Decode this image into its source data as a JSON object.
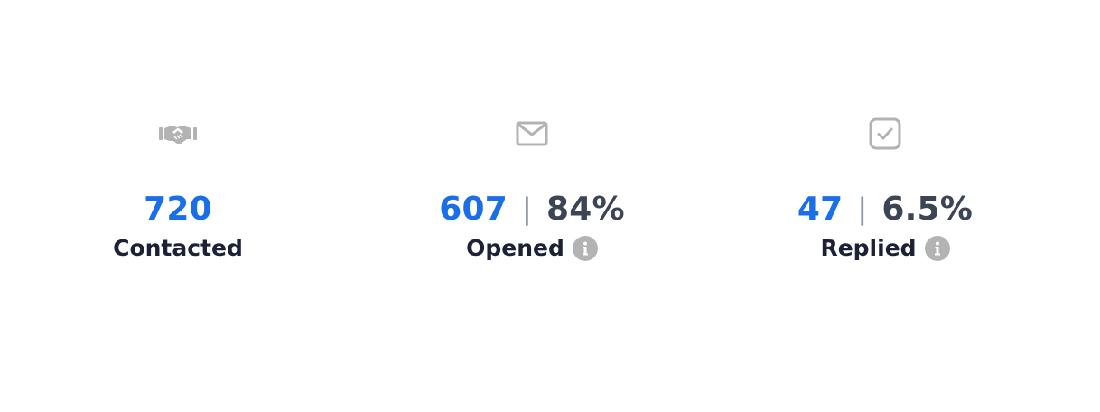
{
  "stats": [
    {
      "icon": "handshake-icon",
      "count": "720",
      "percent": "",
      "label": "Contacted",
      "has_info": false
    },
    {
      "icon": "envelope-icon",
      "count": "607",
      "separator": "|",
      "percent": "84%",
      "label": "Opened",
      "has_info": true
    },
    {
      "icon": "checkbox-icon",
      "count": "47",
      "separator": "|",
      "percent": "6.5%",
      "label": "Replied",
      "has_info": true
    }
  ],
  "colors": {
    "count": "#1a6fe8",
    "percent": "#3b4556",
    "separator": "#8a94a6",
    "label": "#1c2135",
    "icon": "#b3b3b3"
  }
}
